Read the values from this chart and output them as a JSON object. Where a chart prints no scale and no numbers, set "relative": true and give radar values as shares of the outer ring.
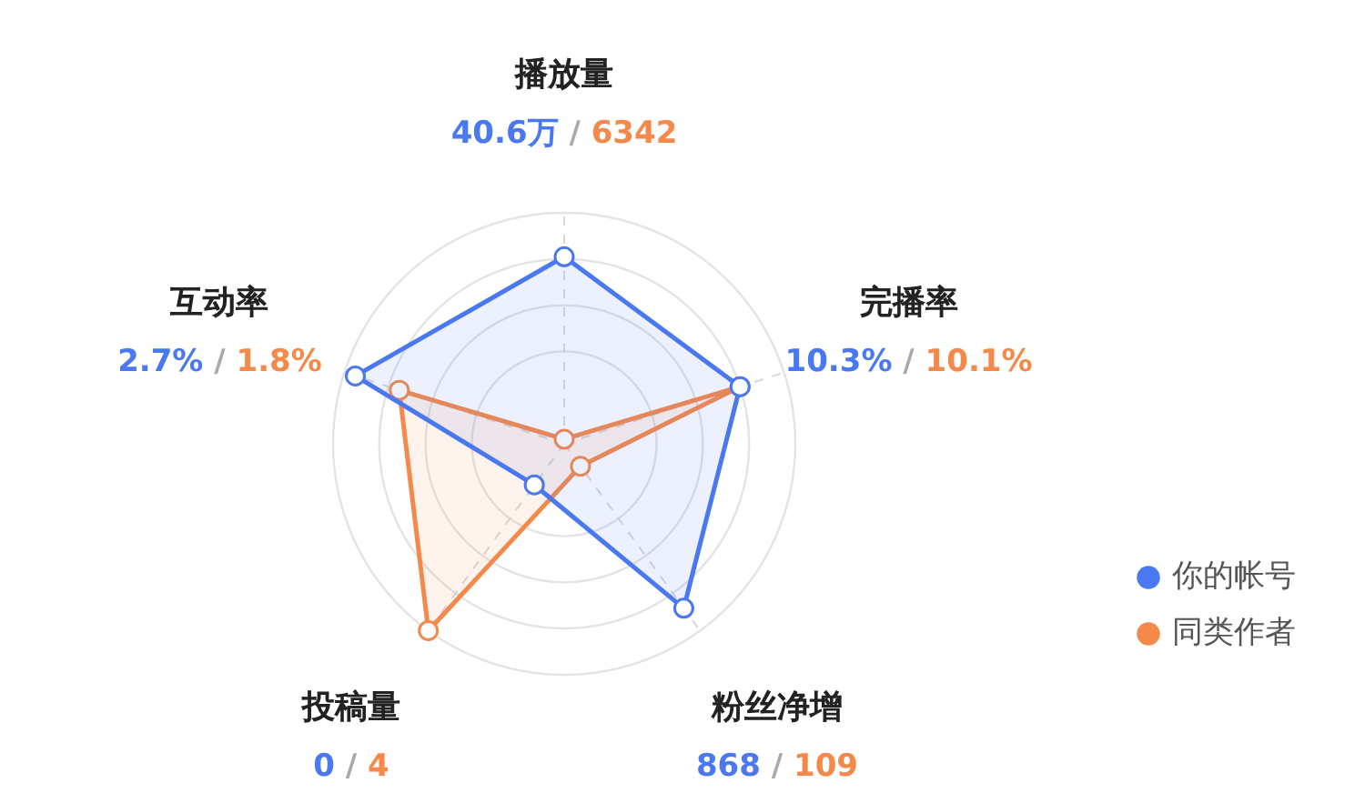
{
  "chart_data": {
    "type": "radar",
    "relative": true,
    "categories": [
      "播放量",
      "完播率",
      "粉丝净增",
      "投稿量",
      "互动率"
    ],
    "series": [
      {
        "name": "你的帐号",
        "color": "#4a78f0",
        "values": [
          0.81,
          0.8,
          0.88,
          0.22,
          0.95
        ]
      },
      {
        "name": "同类作者",
        "color": "#f5894a",
        "values": [
          0.02,
          0.8,
          0.12,
          1.0,
          0.75
        ]
      }
    ],
    "annotations": [
      {
        "text": "40.6万",
        "x": "播放量"
      },
      {
        "text": "/",
        "x": "播放量"
      },
      {
        "text": "6342",
        "x": "播放量"
      },
      {
        "text": "10.3%",
        "x": "完播率"
      },
      {
        "text": "/",
        "x": "完播率"
      },
      {
        "text": "10.1%",
        "x": "完播率"
      },
      {
        "text": "868",
        "x": "粉丝净增"
      },
      {
        "text": "/",
        "x": "粉丝净增"
      },
      {
        "text": "109",
        "x": "粉丝净增"
      },
      {
        "text": "0",
        "x": "投稿量"
      },
      {
        "text": "/",
        "x": "投稿量"
      },
      {
        "text": "4",
        "x": "投稿量"
      },
      {
        "text": "2.7%",
        "x": "互动率"
      },
      {
        "text": "/",
        "x": "互动率"
      },
      {
        "text": "1.8%",
        "x": "互动率"
      }
    ],
    "legend": "bottom right",
    "grid": true,
    "marker": "circle"
  }
}
